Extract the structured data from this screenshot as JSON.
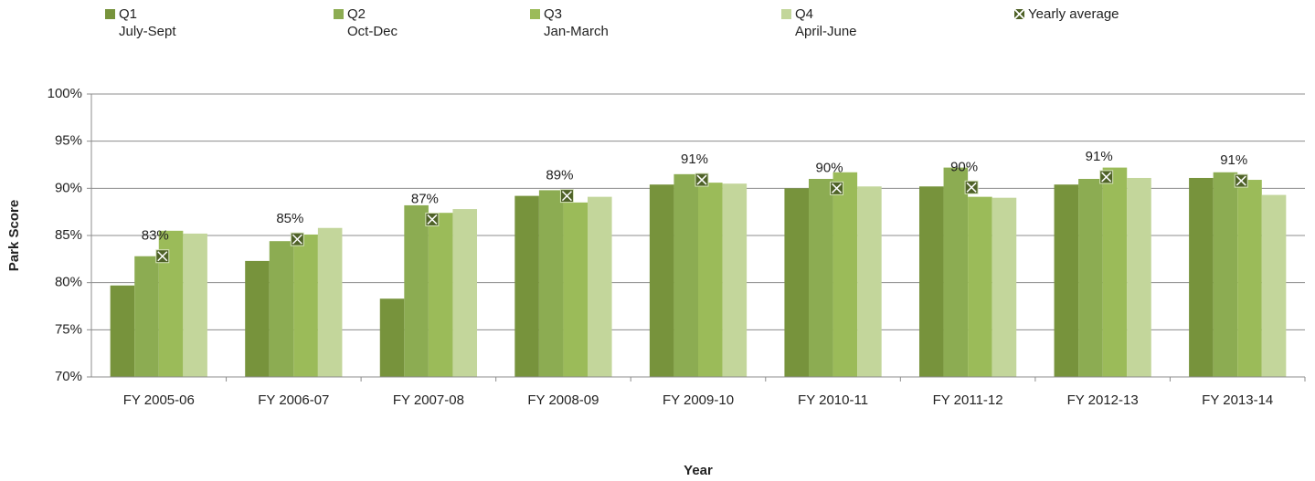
{
  "chart_data": {
    "type": "bar",
    "x_label": "Year",
    "y_label": "Park Score",
    "categories": [
      "FY 2005-06",
      "FY 2006-07",
      "FY 2007-08",
      "FY 2008-09",
      "FY 2009-10",
      "FY 2010-11",
      "FY 2011-12",
      "FY 2012-13",
      "FY 2013-14"
    ],
    "series": [
      {
        "name": "Q1\nJuly-Sept",
        "color": "#77933c",
        "values": [
          79.7,
          82.3,
          78.3,
          89.2,
          90.4,
          90.0,
          90.2,
          90.4,
          91.1
        ]
      },
      {
        "name": "Q2\nOct-Dec",
        "color": "#8cac52",
        "values": [
          82.8,
          84.4,
          88.2,
          89.8,
          91.5,
          91.0,
          92.2,
          91.0,
          91.7
        ]
      },
      {
        "name": "Q3\nJan-March",
        "color": "#9bbb59",
        "values": [
          85.5,
          85.1,
          87.4,
          88.5,
          90.6,
          91.7,
          89.1,
          92.2,
          90.9
        ]
      },
      {
        "name": "Q4\nApril-June",
        "color": "#c3d69b",
        "values": [
          85.2,
          85.8,
          87.8,
          89.1,
          90.5,
          90.2,
          89.0,
          91.1,
          89.3
        ]
      },
      {
        "name": "Yearly average",
        "type": "marker",
        "color": "#4f6228",
        "values": [
          82.8,
          84.6,
          86.7,
          89.2,
          90.9,
          90.0,
          90.1,
          91.2,
          90.8
        ],
        "value_labels": [
          "83%",
          "85%",
          "87%",
          "89%",
          "91%",
          "90%",
          "90%",
          "91%",
          "91%"
        ]
      }
    ],
    "ylim": [
      70,
      100
    ],
    "yticks": [
      {
        "value": 70,
        "label": "70%"
      },
      {
        "value": 75,
        "label": "75%"
      },
      {
        "value": 80,
        "label": "80%"
      },
      {
        "value": 85,
        "label": "85%"
      },
      {
        "value": 90,
        "label": "90%"
      },
      {
        "value": 95,
        "label": "95%"
      },
      {
        "value": 100,
        "label": "100%"
      }
    ],
    "grid": true,
    "legend": "top"
  }
}
